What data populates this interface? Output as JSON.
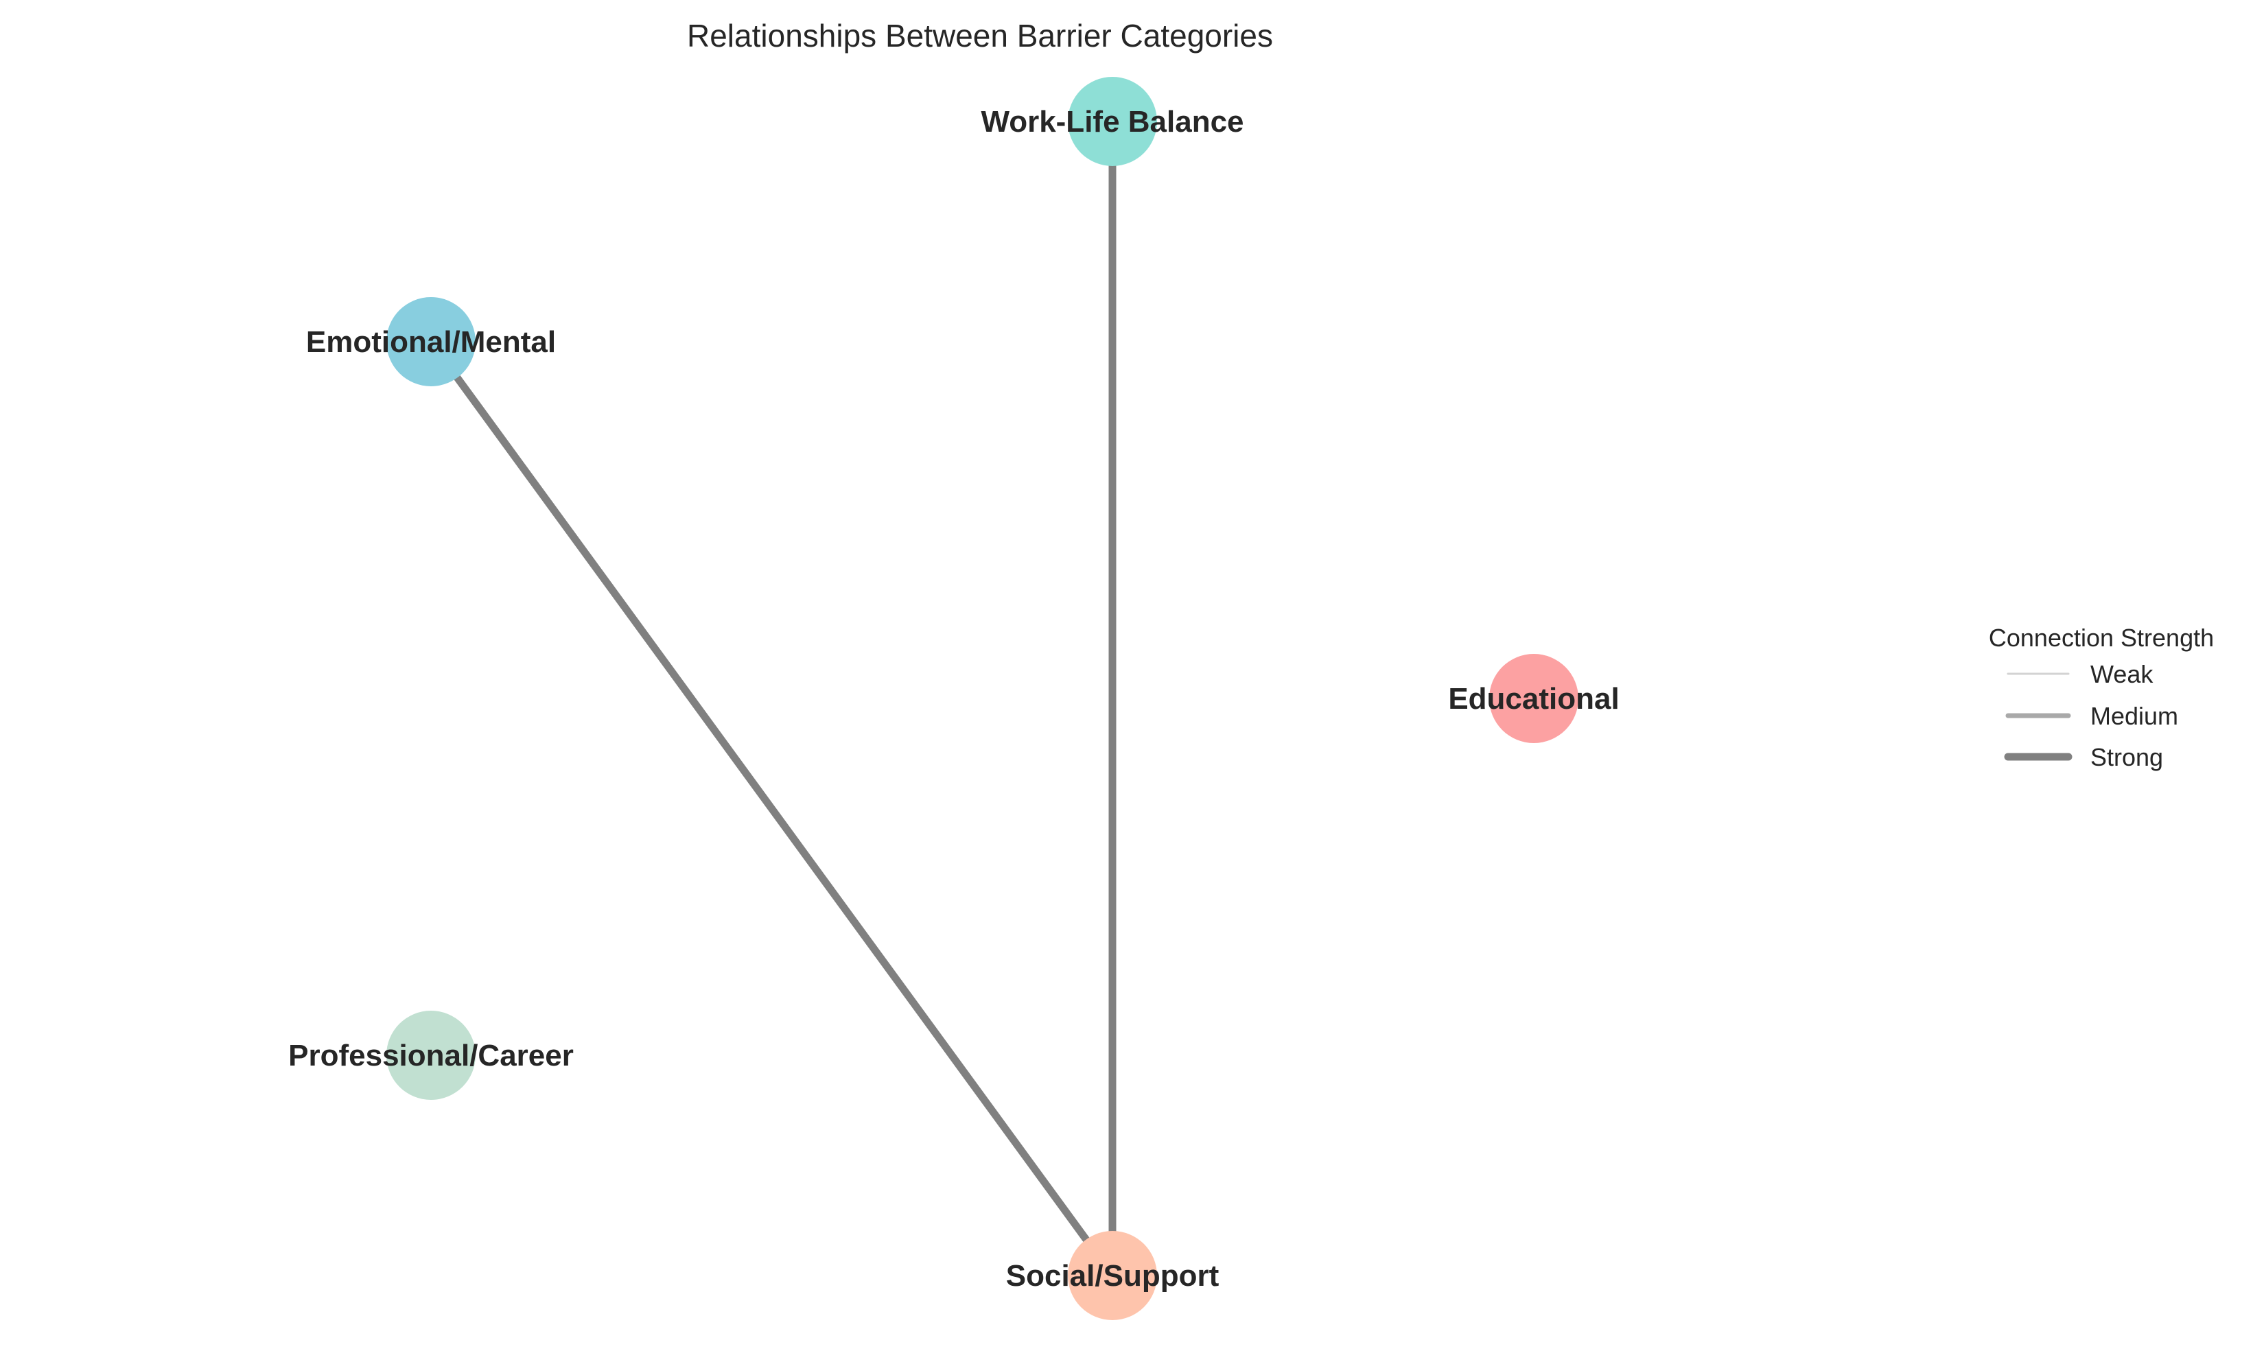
{
  "title": "Relationships Between Barrier Categories",
  "nodes": [
    {
      "id": "work-life-balance",
      "label": "Work-Life Balance",
      "color": "#8EDFD6"
    },
    {
      "id": "emotional-mental",
      "label": "Emotional/Mental",
      "color": "#88CEDF"
    },
    {
      "id": "educational",
      "label": "Educational",
      "color": "#FCA1A2"
    },
    {
      "id": "professional-career",
      "label": "Professional/Career",
      "color": "#C1E0D1"
    },
    {
      "id": "social-support",
      "label": "Social/Support",
      "color": "#FEC4AC"
    }
  ],
  "edges": [
    {
      "from": "work-life-balance",
      "to": "social-support",
      "strength": "Strong"
    },
    {
      "from": "emotional-mental",
      "to": "social-support",
      "strength": "Strong"
    }
  ],
  "legend": {
    "title": "Connection Strength",
    "items": [
      {
        "label": "Weak",
        "color": "#d3d3d3"
      },
      {
        "label": "Medium",
        "color": "#a9a9a9"
      },
      {
        "label": "Strong",
        "color": "#808080"
      }
    ]
  }
}
